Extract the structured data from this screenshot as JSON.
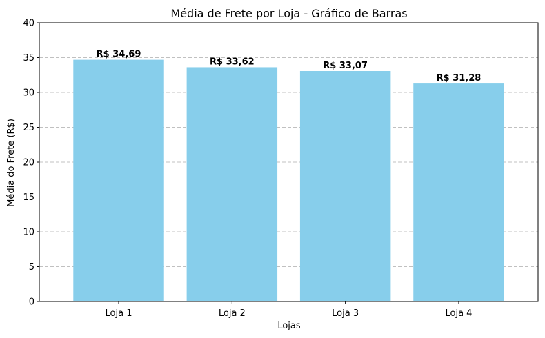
{
  "chart_data": {
    "type": "bar",
    "title": "Média de Frete por Loja - Gráfico de Barras",
    "xlabel": "Lojas",
    "ylabel": "Média do Frete (R$)",
    "categories": [
      "Loja 1",
      "Loja 2",
      "Loja 3",
      "Loja 4"
    ],
    "values": [
      34.69,
      33.62,
      33.07,
      31.28
    ],
    "value_labels": [
      "R$ 34,69",
      "R$ 33,62",
      "R$ 33,07",
      "R$ 31,28"
    ],
    "ylim": [
      0,
      40
    ],
    "yticks": [
      0,
      5,
      10,
      15,
      20,
      25,
      30,
      35,
      40
    ],
    "grid": "y dashed",
    "bar_color": "#87CEEB",
    "grid_color": "#c0c0c0"
  }
}
